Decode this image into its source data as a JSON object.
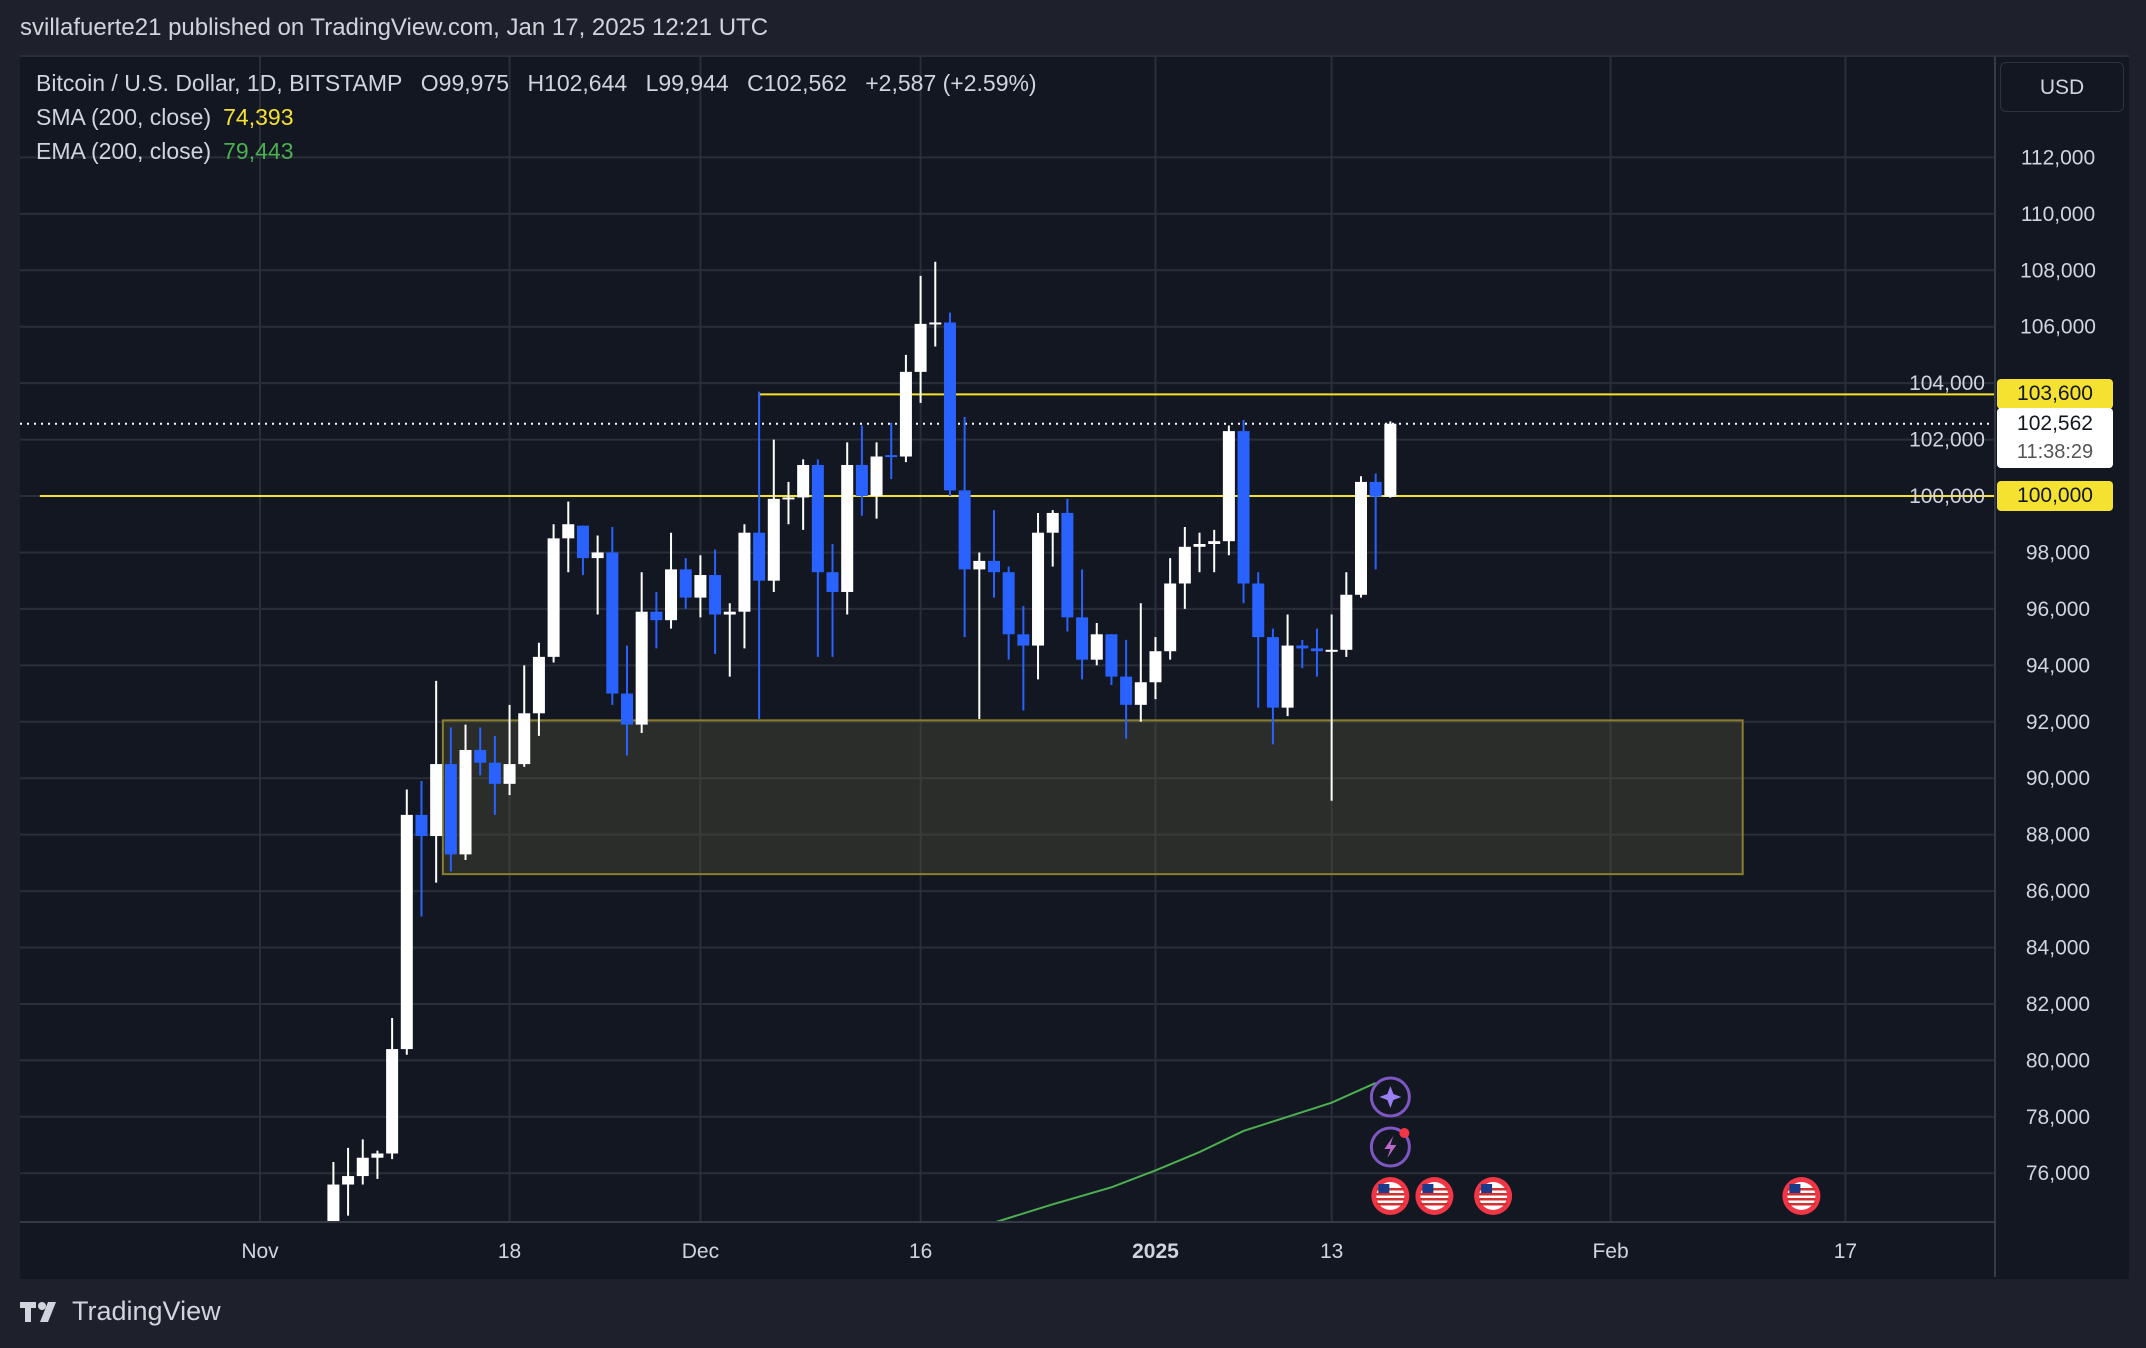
{
  "header": {
    "published": "svillafuerte21 published on TradingView.com, Jan 17, 2025 12:21 UTC"
  },
  "legend": {
    "symbol": "Bitcoin / U.S. Dollar, 1D, BITSTAMP",
    "open": "O99,975",
    "high": "H102,644",
    "low": "L99,944",
    "close": "C102,562",
    "change": "+2,587 (+2.59%)",
    "sma_label": "SMA (200, close)",
    "sma_value": "74,393",
    "ema_label": "EMA (200, close)",
    "ema_value": "79,443"
  },
  "currency_button": "USD",
  "price_labels": {
    "resistance": "103,600",
    "last": "102,562",
    "countdown": "11:38:29",
    "support": "100,000"
  },
  "footer": {
    "brand": "TradingView"
  },
  "colors": {
    "background": "#131722",
    "up": "#ffffff",
    "down": "#2962ff",
    "level": "#f5e12f",
    "ema": "#4caf50",
    "zone_border": "#8a7f2a"
  },
  "chart_data": {
    "type": "candlestick",
    "title": "Bitcoin / U.S. Dollar, 1D, BITSTAMP",
    "ylim": [
      74250,
      115500
    ],
    "y_ticks": [
      "76,000",
      "78,000",
      "80,000",
      "82,000",
      "84,000",
      "86,000",
      "88,000",
      "90,000",
      "92,000",
      "94,000",
      "96,000",
      "98,000",
      "100,000",
      "102,000",
      "104,000",
      "106,000",
      "108,000",
      "110,000",
      "112,000"
    ],
    "y_tick_values": [
      76000,
      78000,
      80000,
      82000,
      84000,
      86000,
      88000,
      90000,
      92000,
      94000,
      96000,
      98000,
      100000,
      102000,
      104000,
      106000,
      108000,
      110000,
      112000
    ],
    "x_ticks": [
      {
        "date": "2024-11-01",
        "label": "Nov"
      },
      {
        "date": "2024-11-18",
        "label": "18"
      },
      {
        "date": "2024-12-01",
        "label": "Dec"
      },
      {
        "date": "2024-12-16",
        "label": "16"
      },
      {
        "date": "2025-01-01",
        "label": "2025",
        "bold": true
      },
      {
        "date": "2025-01-13",
        "label": "13"
      },
      {
        "date": "2025-02-01",
        "label": "Feb"
      },
      {
        "date": "2025-02-17",
        "label": "17"
      }
    ],
    "xlim": [
      "2024-10-17",
      "2025-02-23"
    ],
    "grid": true,
    "candles_columns": [
      "date",
      "open",
      "high",
      "low",
      "close"
    ],
    "candles": [
      [
        "2024-11-06",
        69400,
        76400,
        69000,
        75600
      ],
      [
        "2024-11-07",
        75600,
        76900,
        74500,
        75900
      ],
      [
        "2024-11-08",
        75900,
        77200,
        75600,
        76550
      ],
      [
        "2024-11-09",
        76550,
        76800,
        75800,
        76700
      ],
      [
        "2024-11-10",
        76700,
        81500,
        76500,
        80400
      ],
      [
        "2024-11-11",
        80400,
        89600,
        80200,
        88700
      ],
      [
        "2024-11-12",
        88700,
        89900,
        85100,
        87950
      ],
      [
        "2024-11-13",
        87950,
        93450,
        86300,
        90500
      ],
      [
        "2024-11-14",
        90500,
        91800,
        86700,
        87300
      ],
      [
        "2024-11-15",
        87300,
        91900,
        87100,
        91000
      ],
      [
        "2024-11-16",
        91000,
        91800,
        90100,
        90550
      ],
      [
        "2024-11-17",
        90550,
        91500,
        88700,
        89800
      ],
      [
        "2024-11-18",
        89800,
        92600,
        89400,
        90500
      ],
      [
        "2024-11-19",
        90500,
        94000,
        90400,
        92300
      ],
      [
        "2024-11-20",
        92300,
        94800,
        91500,
        94300
      ],
      [
        "2024-11-21",
        94300,
        99000,
        94100,
        98500
      ],
      [
        "2024-11-22",
        98500,
        99800,
        97300,
        99000
      ],
      [
        "2024-11-23",
        98950,
        98950,
        97200,
        97800
      ],
      [
        "2024-11-24",
        97800,
        98600,
        95800,
        98000
      ],
      [
        "2024-11-25",
        98000,
        98900,
        92600,
        93000
      ],
      [
        "2024-11-26",
        93000,
        94700,
        90800,
        91900
      ],
      [
        "2024-11-27",
        91900,
        97300,
        91600,
        95900
      ],
      [
        "2024-11-28",
        95900,
        96600,
        94600,
        95600
      ],
      [
        "2024-11-29",
        95600,
        98700,
        95300,
        97400
      ],
      [
        "2024-11-30",
        97400,
        97800,
        96000,
        96400
      ],
      [
        "2024-12-01",
        96400,
        97900,
        95700,
        97200
      ],
      [
        "2024-12-02",
        97200,
        98100,
        94400,
        95800
      ],
      [
        "2024-12-03",
        95800,
        96200,
        93600,
        95900
      ],
      [
        "2024-12-04",
        95900,
        99000,
        94600,
        98700
      ],
      [
        "2024-12-05",
        98700,
        103700,
        92100,
        97000
      ],
      [
        "2024-12-06",
        97000,
        102000,
        96600,
        99900
      ],
      [
        "2024-12-07",
        99900,
        100500,
        99000,
        99950
      ],
      [
        "2024-12-08",
        99950,
        101300,
        98800,
        101100
      ],
      [
        "2024-12-09",
        101100,
        101300,
        94300,
        97300
      ],
      [
        "2024-12-10",
        97300,
        98300,
        94300,
        96600
      ],
      [
        "2024-12-11",
        96600,
        101900,
        95800,
        101100
      ],
      [
        "2024-12-12",
        101100,
        102500,
        99300,
        100000
      ],
      [
        "2024-12-13",
        100000,
        101900,
        99200,
        101400
      ],
      [
        "2024-12-14",
        101450,
        102600,
        100600,
        101400
      ],
      [
        "2024-12-15",
        101400,
        105000,
        101200,
        104400
      ],
      [
        "2024-12-16",
        104400,
        107800,
        103300,
        106100
      ],
      [
        "2024-12-17",
        106100,
        108300,
        105300,
        106150
      ],
      [
        "2024-12-18",
        106150,
        106500,
        100000,
        100200
      ],
      [
        "2024-12-19",
        100200,
        102800,
        95000,
        97400
      ],
      [
        "2024-12-20",
        97400,
        98000,
        92100,
        97700
      ],
      [
        "2024-12-21",
        97700,
        99500,
        96400,
        97300
      ],
      [
        "2024-12-22",
        97300,
        97500,
        94200,
        95100
      ],
      [
        "2024-12-23",
        95100,
        96100,
        92400,
        94700
      ],
      [
        "2024-12-24",
        94700,
        99400,
        93500,
        98700
      ],
      [
        "2024-12-25",
        98700,
        99500,
        97500,
        99400
      ],
      [
        "2024-12-26",
        99400,
        99900,
        95200,
        95700
      ],
      [
        "2024-12-27",
        95700,
        97400,
        93500,
        94200
      ],
      [
        "2024-12-28",
        94200,
        95500,
        94000,
        95100
      ],
      [
        "2024-12-29",
        95100,
        95100,
        93300,
        93600
      ],
      [
        "2024-12-30",
        93600,
        94900,
        91400,
        92600
      ],
      [
        "2024-12-31",
        92600,
        96200,
        92000,
        93400
      ],
      [
        "2025-01-01",
        93400,
        95000,
        92800,
        94500
      ],
      [
        "2025-01-02",
        94500,
        97800,
        94200,
        96900
      ],
      [
        "2025-01-03",
        96900,
        98900,
        96000,
        98200
      ],
      [
        "2025-01-04",
        98200,
        98700,
        97300,
        98300
      ],
      [
        "2025-01-05",
        98300,
        98800,
        97300,
        98400
      ],
      [
        "2025-01-06",
        98400,
        102500,
        97900,
        102300
      ],
      [
        "2025-01-07",
        102300,
        102700,
        96200,
        96900
      ],
      [
        "2025-01-08",
        96900,
        97300,
        92500,
        95000
      ],
      [
        "2025-01-09",
        95000,
        95300,
        91200,
        92500
      ],
      [
        "2025-01-10",
        92500,
        95800,
        92200,
        94700
      ],
      [
        "2025-01-11",
        94700,
        94900,
        93900,
        94600
      ],
      [
        "2025-01-12",
        94600,
        95300,
        93600,
        94500
      ],
      [
        "2025-01-13",
        94500,
        95800,
        89200,
        94550
      ],
      [
        "2025-01-14",
        94550,
        97300,
        94300,
        96500
      ],
      [
        "2025-01-15",
        96500,
        100700,
        96400,
        100500
      ],
      [
        "2025-01-16",
        100500,
        100800,
        97400,
        99975
      ],
      [
        "2025-01-17",
        99975,
        102644,
        99944,
        102562
      ]
    ],
    "ema_200": [
      [
        "2024-12-21",
        74250
      ],
      [
        "2024-12-25",
        74900
      ],
      [
        "2024-12-29",
        75500
      ],
      [
        "2025-01-01",
        76100
      ],
      [
        "2025-01-04",
        76750
      ],
      [
        "2025-01-07",
        77500
      ],
      [
        "2025-01-10",
        78000
      ],
      [
        "2025-01-13",
        78500
      ],
      [
        "2025-01-16",
        79200
      ]
    ],
    "horizontal_levels": [
      {
        "price": 103600,
        "from": "2024-12-05",
        "label": "103,600"
      },
      {
        "price": 100000,
        "from": "2024-10-17",
        "label": "100,000"
      }
    ],
    "zone": {
      "from": "2024-11-14",
      "to": "2025-02-10",
      "low": 86600,
      "high": 92050
    },
    "last_price": 102562,
    "events": [
      {
        "date": "2025-01-17",
        "icon": "sparkle-icon"
      },
      {
        "date": "2025-01-17",
        "icon": "lightning-icon"
      },
      {
        "date": "2025-01-17",
        "icon": "us-flag-icon"
      },
      {
        "date": "2025-01-20",
        "icon": "us-flag-icon"
      },
      {
        "date": "2025-01-24",
        "icon": "us-flag-icon"
      },
      {
        "date": "2025-02-14",
        "icon": "us-flag-icon"
      }
    ]
  }
}
